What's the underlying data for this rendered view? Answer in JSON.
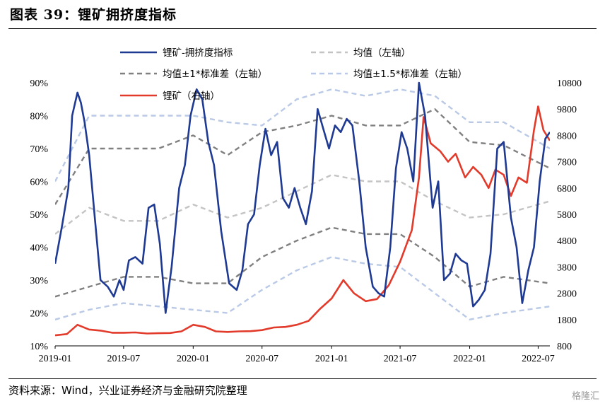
{
  "title": "图表 39：锂矿拥挤度指标",
  "source": "资料来源：Wind，兴业证券经济与金融研究院整理",
  "watermark": "格隆汇",
  "chart_data": {
    "type": "line",
    "x_ticks": [
      "2019-01",
      "2019-07",
      "2020-01",
      "2020-07",
      "2021-01",
      "2021-07",
      "2022-01",
      "2022-07"
    ],
    "x_range": [
      "2019-01-01",
      "2022-08-01"
    ],
    "y_left": {
      "ticks": [
        "10%",
        "20%",
        "30%",
        "40%",
        "50%",
        "60%",
        "70%",
        "80%",
        "90%"
      ],
      "range": [
        10,
        90
      ]
    },
    "y_right": {
      "ticks": [
        "800",
        "1800",
        "2800",
        "3800",
        "4800",
        "5800",
        "6800",
        "7800",
        "8800",
        "9800",
        "10800"
      ],
      "range": [
        800,
        10800
      ]
    },
    "legend": [
      {
        "name": "锂矿-拥挤度指标",
        "key": "crowd"
      },
      {
        "name": "均值（左轴）",
        "key": "mean"
      },
      {
        "name": "均值±1*标准差（左轴）",
        "key": "sd1"
      },
      {
        "name": "均值±1.5*标准差（左轴）",
        "key": "sd15"
      },
      {
        "name": "锂矿（右轴）",
        "key": "price"
      }
    ],
    "series": [
      {
        "key": "crowd",
        "name": "锂矿-拥挤度指标",
        "axis": "left",
        "color": "#1f3a93",
        "style": "solid",
        "x": [
          "2019-01-01",
          "2019-01-20",
          "2019-02-05",
          "2019-02-15",
          "2019-03-01",
          "2019-03-10",
          "2019-03-20",
          "2019-04-01",
          "2019-04-15",
          "2019-05-01",
          "2019-05-20",
          "2019-06-05",
          "2019-06-20",
          "2019-07-01",
          "2019-07-15",
          "2019-08-01",
          "2019-08-20",
          "2019-09-05",
          "2019-09-20",
          "2019-10-05",
          "2019-10-20",
          "2019-11-05",
          "2019-11-25",
          "2019-12-10",
          "2019-12-25",
          "2020-01-10",
          "2020-01-25",
          "2020-02-10",
          "2020-02-25",
          "2020-03-15",
          "2020-04-05",
          "2020-04-25",
          "2020-05-10",
          "2020-05-25",
          "2020-06-10",
          "2020-06-25",
          "2020-07-10",
          "2020-07-25",
          "2020-08-10",
          "2020-08-25",
          "2020-09-10",
          "2020-09-25",
          "2020-10-10",
          "2020-10-25",
          "2020-11-10",
          "2020-11-25",
          "2020-12-10",
          "2020-12-25",
          "2021-01-10",
          "2021-01-25",
          "2021-02-10",
          "2021-02-25",
          "2021-03-15",
          "2021-04-01",
          "2021-04-20",
          "2021-05-05",
          "2021-05-20",
          "2021-06-05",
          "2021-06-20",
          "2021-07-05",
          "2021-07-20",
          "2021-08-05",
          "2021-08-20",
          "2021-09-05",
          "2021-09-25",
          "2021-10-10",
          "2021-10-25",
          "2021-11-10",
          "2021-11-25",
          "2021-12-10",
          "2021-12-25",
          "2022-01-10",
          "2022-01-25",
          "2022-02-10",
          "2022-02-25",
          "2022-03-15",
          "2022-04-01",
          "2022-04-20",
          "2022-05-05",
          "2022-05-20",
          "2022-06-05",
          "2022-06-20",
          "2022-07-05",
          "2022-07-20",
          "2022-08-01"
        ],
        "y": [
          35,
          47,
          58,
          80,
          87,
          84,
          78,
          68,
          50,
          30,
          28,
          25,
          30,
          27,
          36,
          37,
          35,
          52,
          53,
          41,
          20,
          34,
          58,
          65,
          80,
          88,
          85,
          72,
          65,
          45,
          29,
          27,
          33,
          47,
          50,
          65,
          76,
          68,
          72,
          55,
          52,
          58,
          52,
          47,
          57,
          82,
          76,
          70,
          77,
          75,
          79,
          77,
          60,
          40,
          28,
          26,
          25,
          40,
          64,
          75,
          70,
          60,
          90,
          80,
          52,
          60,
          30,
          32,
          38,
          36,
          35,
          22,
          24,
          27,
          38,
          70,
          72,
          49,
          40,
          23,
          33,
          40,
          60,
          73,
          75
        ]
      },
      {
        "key": "price",
        "name": "锂矿（右轴）",
        "axis": "right",
        "color": "#e23a2b",
        "style": "solid",
        "x": [
          "2019-01-01",
          "2019-02-01",
          "2019-03-01",
          "2019-04-01",
          "2019-05-01",
          "2019-06-01",
          "2019-07-01",
          "2019-08-01",
          "2019-09-01",
          "2019-10-01",
          "2019-11-01",
          "2019-12-01",
          "2020-01-01",
          "2020-02-01",
          "2020-03-01",
          "2020-04-01",
          "2020-05-01",
          "2020-06-01",
          "2020-07-01",
          "2020-08-01",
          "2020-09-01",
          "2020-10-01",
          "2020-11-01",
          "2020-12-01",
          "2021-01-01",
          "2021-02-01",
          "2021-03-01",
          "2021-04-01",
          "2021-05-01",
          "2021-06-01",
          "2021-07-01",
          "2021-08-01",
          "2021-08-20",
          "2021-09-01",
          "2021-09-20",
          "2021-10-15",
          "2021-11-05",
          "2021-11-25",
          "2021-12-20",
          "2022-01-10",
          "2022-02-01",
          "2022-02-20",
          "2022-03-10",
          "2022-04-01",
          "2022-04-20",
          "2022-05-10",
          "2022-06-01",
          "2022-06-20",
          "2022-07-01",
          "2022-07-15",
          "2022-08-01"
        ],
        "y": [
          1200,
          1250,
          1600,
          1420,
          1380,
          1300,
          1300,
          1310,
          1270,
          1280,
          1290,
          1350,
          1600,
          1520,
          1350,
          1330,
          1350,
          1360,
          1400,
          1500,
          1520,
          1600,
          1750,
          2200,
          2600,
          3300,
          2800,
          2500,
          2580,
          3100,
          4000,
          5200,
          7200,
          9500,
          8500,
          8200,
          7800,
          8100,
          7200,
          7600,
          7300,
          6800,
          7500,
          7300,
          6500,
          7200,
          7000,
          9000,
          9900,
          9000,
          8600
        ]
      },
      {
        "key": "mean",
        "name": "均值（左轴）",
        "axis": "left",
        "color": "#c4c4c4",
        "style": "dash",
        "x": [
          "2019-01-01",
          "2019-04-01",
          "2019-07-01",
          "2019-10-01",
          "2020-01-01",
          "2020-04-01",
          "2020-07-01",
          "2020-10-01",
          "2021-01-01",
          "2021-04-01",
          "2021-07-01",
          "2021-10-01",
          "2022-01-01",
          "2022-04-01",
          "2022-08-01"
        ],
        "y": [
          44,
          52,
          48,
          48,
          53,
          49,
          52,
          57,
          62,
          60,
          60,
          54,
          49,
          50,
          54
        ]
      },
      {
        "key": "sd1_up",
        "name": "均值±1*标准差（左轴）",
        "axis": "left",
        "color": "#808080",
        "style": "dash",
        "x": [
          "2019-01-01",
          "2019-04-01",
          "2019-07-01",
          "2019-10-01",
          "2020-01-01",
          "2020-04-01",
          "2020-07-01",
          "2020-10-01",
          "2021-01-01",
          "2021-04-01",
          "2021-07-01",
          "2021-10-01",
          "2022-01-01",
          "2022-04-01",
          "2022-08-01"
        ],
        "y": [
          53,
          70,
          70,
          70,
          74,
          68,
          75,
          77,
          80,
          77,
          77,
          82,
          72,
          71,
          64
        ]
      },
      {
        "key": "sd1_low",
        "name": "均值±1*标准差（左轴）",
        "axis": "left",
        "color": "#808080",
        "style": "dash",
        "x": [
          "2019-01-01",
          "2019-04-01",
          "2019-07-01",
          "2019-10-01",
          "2020-01-01",
          "2020-04-01",
          "2020-07-01",
          "2020-10-01",
          "2021-01-01",
          "2021-04-01",
          "2021-07-01",
          "2021-10-01",
          "2022-01-01",
          "2022-04-01",
          "2022-08-01"
        ],
        "y": [
          25,
          28,
          31,
          31,
          29,
          29,
          37,
          42,
          46,
          44,
          44,
          37,
          28,
          31,
          29
        ]
      },
      {
        "key": "sd15_up",
        "name": "均值±1.5*标准差（左轴）",
        "axis": "left",
        "color": "#b9c9e6",
        "style": "dash",
        "x": [
          "2019-01-01",
          "2019-04-01",
          "2019-07-01",
          "2019-10-01",
          "2020-01-01",
          "2020-04-01",
          "2020-07-01",
          "2020-10-01",
          "2021-01-01",
          "2021-04-01",
          "2021-07-01",
          "2021-10-01",
          "2022-01-01",
          "2022-04-01",
          "2022-08-01"
        ],
        "y": [
          60,
          80,
          80,
          80,
          80,
          78,
          77,
          85,
          88,
          86,
          88,
          86,
          78,
          78,
          70
        ]
      },
      {
        "key": "sd15_low",
        "name": "均值±1.5*标准差（左轴）",
        "axis": "left",
        "color": "#b9c9e6",
        "style": "dash",
        "x": [
          "2019-01-01",
          "2019-04-01",
          "2019-07-01",
          "2019-10-01",
          "2020-01-01",
          "2020-04-01",
          "2020-07-01",
          "2020-10-01",
          "2021-01-01",
          "2021-04-01",
          "2021-07-01",
          "2021-10-01",
          "2022-01-01",
          "2022-04-01",
          "2022-08-01"
        ],
        "y": [
          18,
          21,
          23,
          22,
          21,
          20,
          27,
          33,
          37,
          35,
          34,
          26,
          18,
          20,
          22
        ]
      }
    ]
  }
}
